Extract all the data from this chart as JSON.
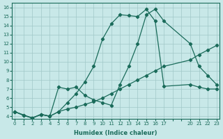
{
  "xlabel": "Humidex (Indice chaleur)",
  "bg_color": "#c8e8e8",
  "grid_color": "#a0c8c8",
  "line_color": "#1a6b5a",
  "xlim": [
    -0.3,
    23.3
  ],
  "ylim": [
    3.7,
    16.5
  ],
  "yticks": [
    4,
    5,
    6,
    7,
    8,
    9,
    10,
    11,
    12,
    13,
    14,
    15,
    16
  ],
  "xtick_positions": [
    0,
    1,
    2,
    3,
    4,
    5,
    6,
    7,
    8,
    9,
    10,
    11,
    12,
    13,
    14,
    15,
    16,
    17,
    18,
    19,
    20,
    21,
    22,
    23
  ],
  "xtick_labels": [
    "0",
    "1",
    "2",
    "3",
    "4",
    "5",
    "6",
    "7",
    "8",
    "9",
    "10",
    "11",
    "12",
    "13",
    "14",
    "15",
    "16",
    "17",
    "",
    "",
    "20",
    "21",
    "22",
    "23"
  ],
  "series1_x": [
    0,
    1,
    2,
    3,
    4,
    5,
    6,
    7,
    8,
    9,
    10,
    11,
    12,
    13,
    14,
    15,
    16,
    17,
    20,
    21,
    22,
    23
  ],
  "series1_y": [
    4.5,
    4.1,
    3.8,
    4.2,
    4.0,
    4.5,
    5.5,
    6.5,
    7.8,
    9.5,
    12.5,
    14.2,
    15.2,
    15.1,
    15.0,
    15.8,
    14.5,
    7.3,
    7.5,
    7.2,
    7.0,
    7.0
  ],
  "series2_x": [
    0,
    1,
    2,
    3,
    4,
    5,
    6,
    7,
    8,
    9,
    10,
    11,
    12,
    13,
    14,
    15,
    16,
    17,
    20,
    21,
    22,
    23
  ],
  "series2_y": [
    4.5,
    4.1,
    3.8,
    4.2,
    4.0,
    7.2,
    7.0,
    7.2,
    6.3,
    5.8,
    5.5,
    5.2,
    7.5,
    9.5,
    12.0,
    15.2,
    15.8,
    14.5,
    12.0,
    9.5,
    8.5,
    7.5
  ],
  "series3_x": [
    0,
    2,
    3,
    4,
    5,
    6,
    7,
    8,
    9,
    10,
    11,
    12,
    13,
    14,
    15,
    16,
    17,
    20,
    21,
    22,
    23
  ],
  "series3_y": [
    4.5,
    3.8,
    4.2,
    4.0,
    4.5,
    4.8,
    5.0,
    5.3,
    5.6,
    6.0,
    6.5,
    7.0,
    7.5,
    8.0,
    8.5,
    9.0,
    9.5,
    10.2,
    10.8,
    11.3,
    11.8
  ]
}
